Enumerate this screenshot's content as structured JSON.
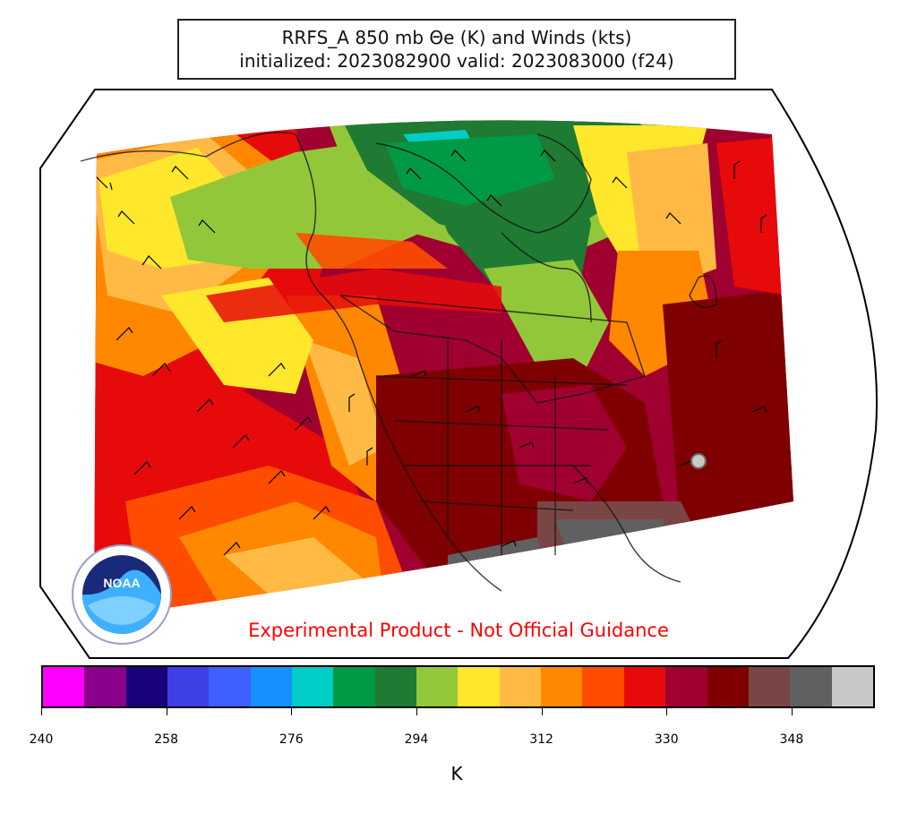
{
  "title": {
    "line1": "RRFS_A 850 mb Θe (K) and Winds (kts)",
    "line2": "initialized: 2023082900 valid: 2023083000 (f24)"
  },
  "disclaimer": "Experimental Product - Not Official Guidance",
  "logo": {
    "text": "NOAA",
    "icon": "noaa-seal-icon"
  },
  "colorbar": {
    "unit": "K",
    "min": 240,
    "max": 360,
    "step": 6,
    "ticks": [
      "240",
      "258",
      "276",
      "294",
      "312",
      "330",
      "348"
    ],
    "colors": [
      "#ff00ff",
      "#8b008b",
      "#1a007a",
      "#3f3fe6",
      "#3f5fff",
      "#1590ff",
      "#00cdc5",
      "#009945",
      "#1f7a33",
      "#93c73a",
      "#ffe72b",
      "#ffba45",
      "#ff8800",
      "#ff4d00",
      "#e60a0a",
      "#a00030",
      "#7f0000",
      "#7a4545",
      "#606060",
      "#c8c8c8"
    ]
  },
  "map": {
    "projection": "lambert-conformal",
    "fields": [
      "theta-e",
      "wind-barbs"
    ]
  }
}
